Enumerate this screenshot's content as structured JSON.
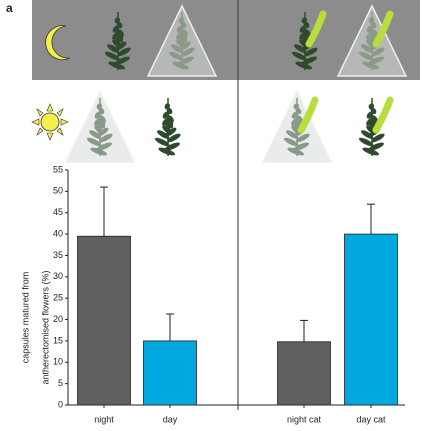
{
  "panel_label": "a",
  "chart_data": {
    "type": "bar",
    "ylabel": [
      "capsules matured from",
      "antherectomised flowers (%)"
    ],
    "categories": [
      "night",
      "day",
      "night cat",
      "day cat"
    ],
    "values": [
      39.5,
      15,
      14.8,
      40
    ],
    "errors": [
      11.5,
      6.3,
      5,
      7
    ],
    "colors": [
      "#5f6062",
      "#00a8e0",
      "#5f6062",
      "#00a8e0"
    ],
    "ylim": [
      0,
      55
    ],
    "yticks": [
      0,
      5,
      10,
      15,
      20,
      25,
      30,
      35,
      40,
      45,
      50,
      55
    ]
  }
}
